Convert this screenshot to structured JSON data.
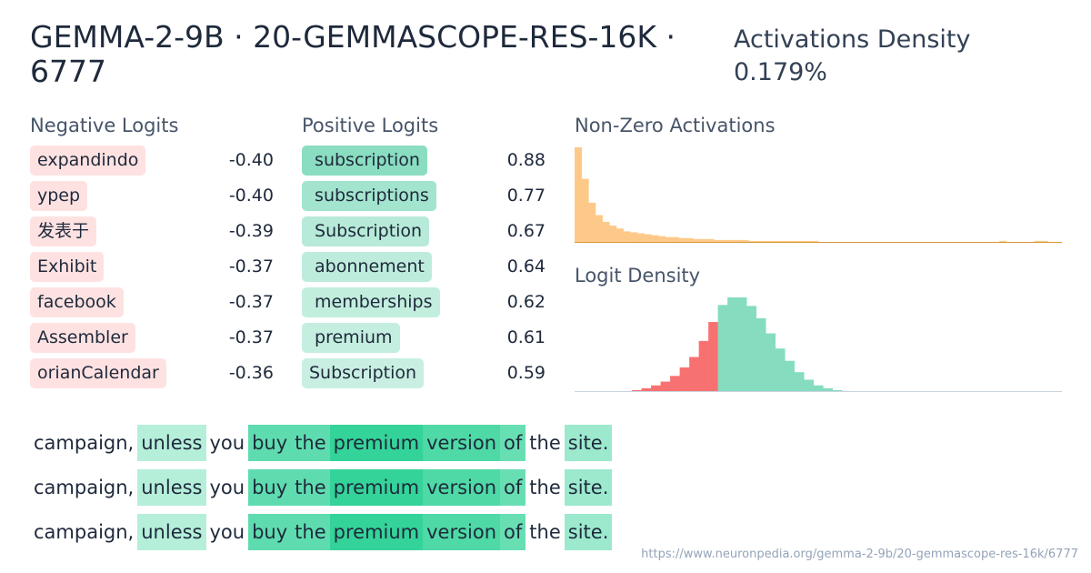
{
  "header": {
    "title": "GEMMA-2-9B · 20-GEMMASCOPE-RES-16K · 6777",
    "density_label": "Activations Density",
    "density_value": "0.179%"
  },
  "sections": {
    "negative": "Negative Logits",
    "positive": "Positive Logits",
    "nonzero": "Non-Zero Activations",
    "logit_density": "Logit Density"
  },
  "negative_logits": [
    {
      "token": "expandindo",
      "value": "-0.40"
    },
    {
      "token": "ypep",
      "value": "-0.40"
    },
    {
      "token": "发表于",
      "value": "-0.39"
    },
    {
      "token": "Exhibit",
      "value": "-0.37"
    },
    {
      "token": "facebook",
      "value": "-0.37"
    },
    {
      "token": "Assembler",
      "value": "-0.37"
    },
    {
      "token": "orianCalendar",
      "value": "-0.36"
    }
  ],
  "positive_logits": [
    {
      "token": " subscription",
      "value": "0.88",
      "strength": 0.88
    },
    {
      "token": " subscriptions",
      "value": "0.77",
      "strength": 0.77
    },
    {
      "token": " Subscription",
      "value": "0.67",
      "strength": 0.67
    },
    {
      "token": " abonnement",
      "value": "0.64",
      "strength": 0.64
    },
    {
      "token": " memberships",
      "value": "0.62",
      "strength": 0.62
    },
    {
      "token": " premium",
      "value": "0.61",
      "strength": 0.61
    },
    {
      "token": "Subscription",
      "value": "0.59",
      "strength": 0.59
    }
  ],
  "activation_histogram": {
    "color": "#fdc989",
    "values": [
      100,
      67,
      42,
      29,
      22,
      18,
      15,
      12,
      11,
      10,
      9,
      8,
      7,
      6,
      6,
      5,
      5,
      4,
      4,
      4,
      3,
      3,
      3,
      3,
      3,
      2,
      2,
      2,
      2,
      2,
      2,
      2,
      2,
      2,
      2,
      1,
      1,
      1,
      1,
      1,
      1,
      1,
      1,
      1,
      1,
      1,
      1,
      1,
      1,
      1,
      1,
      1,
      1,
      1,
      1,
      1,
      1,
      1,
      1,
      1,
      1,
      2,
      1,
      1,
      1,
      1,
      2,
      2,
      1,
      1
    ]
  },
  "logit_histogram": {
    "negative_color": "#f87171",
    "positive_color": "#86dcbe",
    "values": [
      0,
      0,
      0,
      0,
      0,
      1,
      2,
      4,
      7,
      11,
      17,
      26,
      37,
      54,
      74,
      92,
      100,
      100,
      91,
      78,
      62,
      46,
      33,
      21,
      13,
      7,
      4,
      2,
      1,
      0,
      0,
      0,
      0,
      0,
      0,
      0,
      0,
      0,
      0,
      0,
      0,
      0,
      0,
      0,
      0,
      0,
      0,
      0,
      0,
      0,
      0
    ],
    "positive_start_index": 15
  },
  "activation_examples": {
    "color": "#34d399",
    "rows": [
      [
        {
          "t": "campaign,",
          "a": 0
        },
        {
          "t": "unless",
          "a": 0.25
        },
        {
          "t": "you",
          "a": 0
        },
        {
          "t": "buy",
          "a": 0.75
        },
        {
          "t": "the",
          "a": 0.75
        },
        {
          "t": "premium",
          "a": 1.0
        },
        {
          "t": "version",
          "a": 0.85
        },
        {
          "t": "of",
          "a": 0.7
        },
        {
          "t": "the",
          "a": 0
        },
        {
          "t": "site.",
          "a": 0.4
        }
      ],
      [
        {
          "t": "campaign,",
          "a": 0
        },
        {
          "t": "unless",
          "a": 0.25
        },
        {
          "t": "you",
          "a": 0
        },
        {
          "t": "buy",
          "a": 0.75
        },
        {
          "t": "the",
          "a": 0.75
        },
        {
          "t": "premium",
          "a": 1.0
        },
        {
          "t": "version",
          "a": 0.85
        },
        {
          "t": "of",
          "a": 0.7
        },
        {
          "t": "the",
          "a": 0
        },
        {
          "t": "site.",
          "a": 0.4
        }
      ],
      [
        {
          "t": "campaign,",
          "a": 0
        },
        {
          "t": "unless",
          "a": 0.25
        },
        {
          "t": "you",
          "a": 0
        },
        {
          "t": "buy",
          "a": 0.75
        },
        {
          "t": "the",
          "a": 0.75
        },
        {
          "t": "premium",
          "a": 1.0
        },
        {
          "t": "version",
          "a": 0.85
        },
        {
          "t": "of",
          "a": 0.7
        },
        {
          "t": "the",
          "a": 0
        },
        {
          "t": "site.",
          "a": 0.4
        }
      ]
    ]
  },
  "footer": {
    "url": "https://www.neuronpedia.org/gemma-2-9b/20-gemmascope-res-16k/6777"
  }
}
